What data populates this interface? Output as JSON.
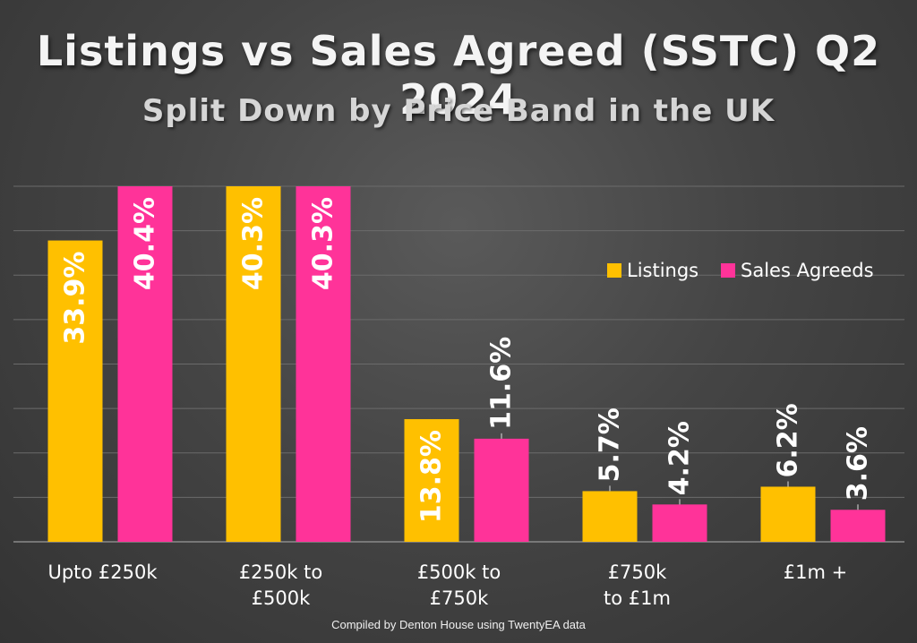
{
  "chart_data": {
    "type": "bar",
    "title": "Listings vs Sales Agreed (SSTC) Q2 2024",
    "subtitle": "Split Down by Price Band in the UK",
    "categories": [
      [
        "Upto £250k"
      ],
      [
        "£250k to",
        "£500k"
      ],
      [
        "£500k to",
        "£750k"
      ],
      [
        "£750k",
        "to £1m"
      ],
      [
        "£1m +"
      ]
    ],
    "series": [
      {
        "name": "Listings",
        "color": "#ffc000",
        "values": [
          33.9,
          40.3,
          13.8,
          5.7,
          6.2
        ],
        "labels": [
          "33.9%",
          "40.3%",
          "13.8%",
          "5.7%",
          "6.2%"
        ]
      },
      {
        "name": "Sales Agreeds",
        "color": "#ff3399",
        "values": [
          40.4,
          40.3,
          11.6,
          4.2,
          3.6
        ],
        "labels": [
          "40.4%",
          "40.3%",
          "11.6%",
          "4.2%",
          "3.6%"
        ]
      }
    ],
    "ylim": [
      0,
      40
    ],
    "grid": true,
    "legend_position": "top-right",
    "credit": "Compiled by Denton House using TwentyEA data"
  }
}
